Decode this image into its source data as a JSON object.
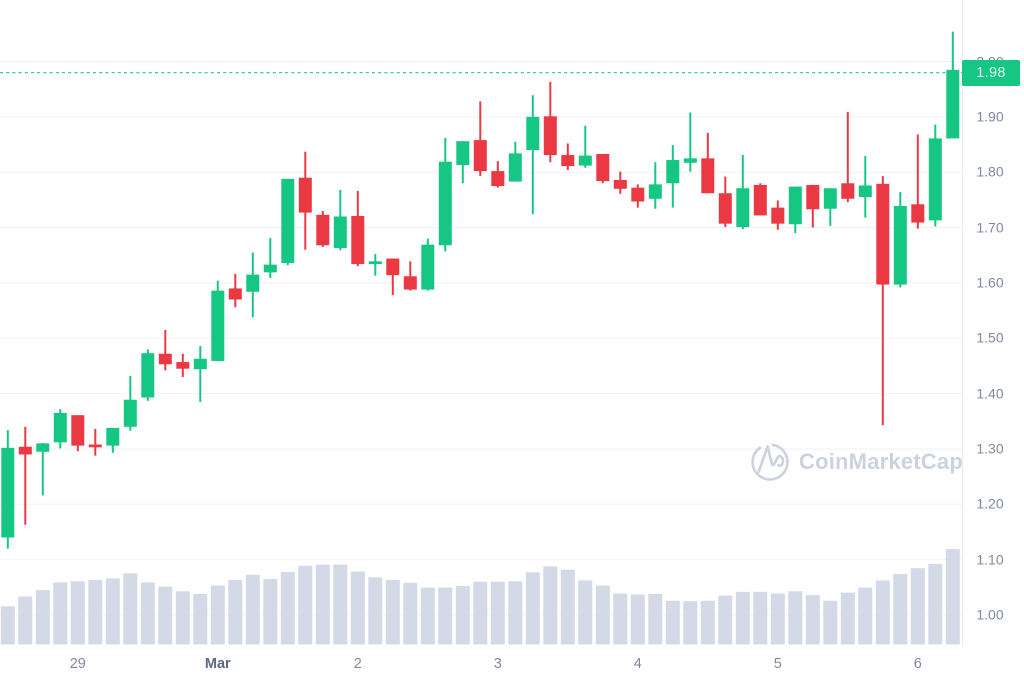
{
  "page": {
    "background": "#ffffff"
  },
  "watermark": {
    "text": "CoinMarketCap"
  },
  "chart_data": {
    "type": "candlestick",
    "title": "",
    "xlabel": "",
    "ylabel": "",
    "legend": false,
    "grid": true,
    "current_price": 1.98,
    "current_price_label": "1.98",
    "price_line_style": "dotted",
    "colors": {
      "up": "#16c784",
      "down": "#ea3943",
      "volume_bar": "#d3d9e7",
      "gridline": "#f0f2f6",
      "axis_line": "#e7eaef",
      "tick_text": "#808a9d",
      "month_tick_text": "#5b6a84",
      "price_tag_bg": "#16c784",
      "price_tag_text": "#dcf6ea",
      "price_line": "#16c784",
      "watermark": "#ccd2de"
    },
    "y_axis": {
      "side": "right",
      "min": 1.0,
      "max": 2.0,
      "step": 0.1,
      "ticks": [
        "2.00",
        "1.90",
        "1.80",
        "1.70",
        "1.60",
        "1.50",
        "1.40",
        "1.30",
        "1.20",
        "1.10",
        "1.00"
      ]
    },
    "x_axis": {
      "ticks": [
        {
          "label": "29",
          "candle_index": 4,
          "bold": false
        },
        {
          "label": "Mar",
          "candle_index": 12,
          "bold": true
        },
        {
          "label": "2",
          "candle_index": 20,
          "bold": false
        },
        {
          "label": "3",
          "candle_index": 28,
          "bold": false
        },
        {
          "label": "4",
          "candle_index": 36,
          "bold": false
        },
        {
          "label": "5",
          "candle_index": 44,
          "bold": false
        },
        {
          "label": "6",
          "candle_index": 52,
          "bold": false
        }
      ]
    },
    "candles": [
      {
        "o": 1.14,
        "h": 1.334,
        "l": 1.12,
        "c": 1.302
      },
      {
        "o": 1.304,
        "h": 1.34,
        "l": 1.163,
        "c": 1.29
      },
      {
        "o": 1.295,
        "h": 1.311,
        "l": 1.216,
        "c": 1.31
      },
      {
        "o": 1.312,
        "h": 1.372,
        "l": 1.301,
        "c": 1.365
      },
      {
        "o": 1.361,
        "h": 1.361,
        "l": 1.296,
        "c": 1.306
      },
      {
        "o": 1.308,
        "h": 1.336,
        "l": 1.288,
        "c": 1.303
      },
      {
        "o": 1.306,
        "h": 1.338,
        "l": 1.293,
        "c": 1.338
      },
      {
        "o": 1.34,
        "h": 1.432,
        "l": 1.333,
        "c": 1.389
      },
      {
        "o": 1.393,
        "h": 1.48,
        "l": 1.387,
        "c": 1.473
      },
      {
        "o": 1.472,
        "h": 1.515,
        "l": 1.442,
        "c": 1.453
      },
      {
        "o": 1.457,
        "h": 1.472,
        "l": 1.43,
        "c": 1.445
      },
      {
        "o": 1.444,
        "h": 1.486,
        "l": 1.385,
        "c": 1.463
      },
      {
        "o": 1.459,
        "h": 1.604,
        "l": 1.459,
        "c": 1.586
      },
      {
        "o": 1.59,
        "h": 1.616,
        "l": 1.556,
        "c": 1.57
      },
      {
        "o": 1.584,
        "h": 1.655,
        "l": 1.538,
        "c": 1.615
      },
      {
        "o": 1.619,
        "h": 1.681,
        "l": 1.609,
        "c": 1.633
      },
      {
        "o": 1.636,
        "h": 1.788,
        "l": 1.632,
        "c": 1.788
      },
      {
        "o": 1.79,
        "h": 1.837,
        "l": 1.66,
        "c": 1.727
      },
      {
        "o": 1.723,
        "h": 1.73,
        "l": 1.665,
        "c": 1.668
      },
      {
        "o": 1.663,
        "h": 1.768,
        "l": 1.659,
        "c": 1.72
      },
      {
        "o": 1.721,
        "h": 1.766,
        "l": 1.63,
        "c": 1.634
      },
      {
        "o": 1.634,
        "h": 1.652,
        "l": 1.613,
        "c": 1.639
      },
      {
        "o": 1.644,
        "h": 1.644,
        "l": 1.578,
        "c": 1.614
      },
      {
        "o": 1.612,
        "h": 1.639,
        "l": 1.586,
        "c": 1.588
      },
      {
        "o": 1.588,
        "h": 1.68,
        "l": 1.586,
        "c": 1.669
      },
      {
        "o": 1.668,
        "h": 1.862,
        "l": 1.657,
        "c": 1.819
      },
      {
        "o": 1.813,
        "h": 1.856,
        "l": 1.78,
        "c": 1.856
      },
      {
        "o": 1.858,
        "h": 1.928,
        "l": 1.793,
        "c": 1.802
      },
      {
        "o": 1.802,
        "h": 1.82,
        "l": 1.772,
        "c": 1.775
      },
      {
        "o": 1.783,
        "h": 1.855,
        "l": 1.783,
        "c": 1.834
      },
      {
        "o": 1.84,
        "h": 1.939,
        "l": 1.724,
        "c": 1.9
      },
      {
        "o": 1.901,
        "h": 1.963,
        "l": 1.818,
        "c": 1.831
      },
      {
        "o": 1.831,
        "h": 1.852,
        "l": 1.804,
        "c": 1.811
      },
      {
        "o": 1.812,
        "h": 1.884,
        "l": 1.808,
        "c": 1.83
      },
      {
        "o": 1.833,
        "h": 1.833,
        "l": 1.78,
        "c": 1.784
      },
      {
        "o": 1.786,
        "h": 1.801,
        "l": 1.761,
        "c": 1.77
      },
      {
        "o": 1.772,
        "h": 1.778,
        "l": 1.736,
        "c": 1.747
      },
      {
        "o": 1.752,
        "h": 1.818,
        "l": 1.734,
        "c": 1.778
      },
      {
        "o": 1.78,
        "h": 1.849,
        "l": 1.736,
        "c": 1.822
      },
      {
        "o": 1.817,
        "h": 1.908,
        "l": 1.801,
        "c": 1.825
      },
      {
        "o": 1.825,
        "h": 1.871,
        "l": 1.762,
        "c": 1.762
      },
      {
        "o": 1.762,
        "h": 1.792,
        "l": 1.701,
        "c": 1.707
      },
      {
        "o": 1.701,
        "h": 1.831,
        "l": 1.697,
        "c": 1.771
      },
      {
        "o": 1.777,
        "h": 1.78,
        "l": 1.722,
        "c": 1.722
      },
      {
        "o": 1.736,
        "h": 1.749,
        "l": 1.696,
        "c": 1.707
      },
      {
        "o": 1.706,
        "h": 1.774,
        "l": 1.69,
        "c": 1.774
      },
      {
        "o": 1.777,
        "h": 1.777,
        "l": 1.7,
        "c": 1.733
      },
      {
        "o": 1.734,
        "h": 1.771,
        "l": 1.703,
        "c": 1.771
      },
      {
        "o": 1.78,
        "h": 1.909,
        "l": 1.746,
        "c": 1.752
      },
      {
        "o": 1.755,
        "h": 1.829,
        "l": 1.718,
        "c": 1.776
      },
      {
        "o": 1.779,
        "h": 1.793,
        "l": 1.343,
        "c": 1.597
      },
      {
        "o": 1.597,
        "h": 1.764,
        "l": 1.592,
        "c": 1.739
      },
      {
        "o": 1.742,
        "h": 1.868,
        "l": 1.698,
        "c": 1.709
      },
      {
        "o": 1.713,
        "h": 1.886,
        "l": 1.702,
        "c": 1.861
      },
      {
        "o": 1.861,
        "h": 2.054,
        "l": 1.861,
        "c": 1.985
      }
    ],
    "volume_rel": [
      0.4,
      0.504,
      0.571,
      0.651,
      0.663,
      0.677,
      0.693,
      0.746,
      0.651,
      0.606,
      0.558,
      0.53,
      0.618,
      0.677,
      0.731,
      0.686,
      0.76,
      0.826,
      0.838,
      0.838,
      0.765,
      0.704,
      0.677,
      0.646,
      0.597,
      0.597,
      0.613,
      0.658,
      0.658,
      0.663,
      0.757,
      0.819,
      0.784,
      0.672,
      0.618,
      0.534,
      0.525,
      0.53,
      0.459,
      0.454,
      0.459,
      0.513,
      0.552,
      0.552,
      0.534,
      0.558,
      0.518,
      0.459,
      0.544,
      0.597,
      0.672,
      0.739,
      0.8,
      0.845,
      1.0
    ]
  }
}
